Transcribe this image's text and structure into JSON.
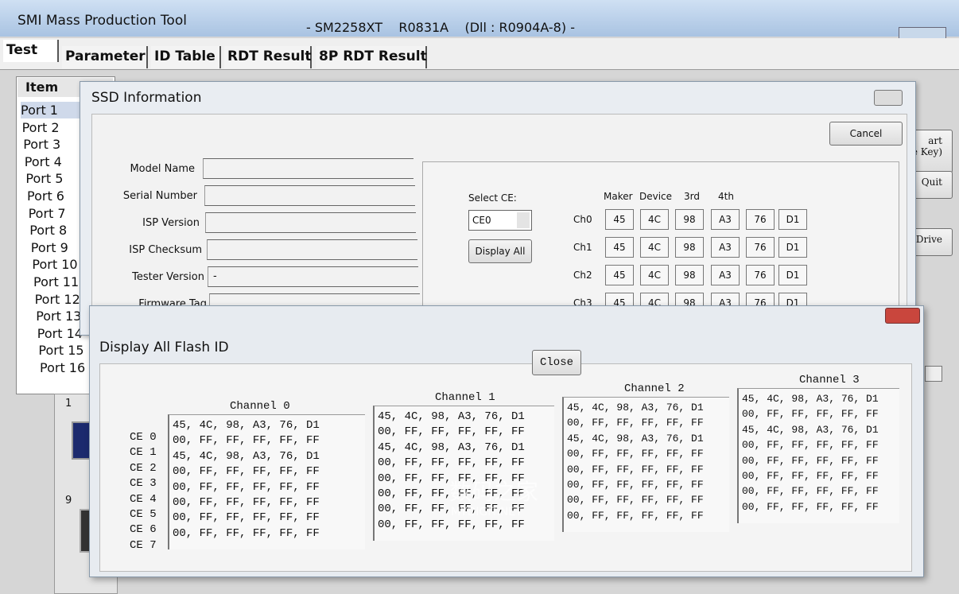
{
  "window": {
    "title": "SMI Mass Production Tool",
    "version": "- SM2258XT    R0831A    (Dll : R0904A-8) -"
  },
  "tabs": [
    "Test",
    "Parameter",
    "ID Table",
    "RDT Result",
    "8P RDT Result"
  ],
  "item_header": "Item",
  "ports": [
    "Port 1",
    "Port 2",
    "Port 3",
    "Port 4",
    "Port 5",
    "Port 6",
    "Port 7",
    "Port 8",
    "Port 9",
    "Port 10",
    "Port 11",
    "Port 12",
    "Port 13",
    "Port 14",
    "Port 15",
    "Port 16"
  ],
  "side_buttons": [
    [
      "art",
      "e Key)"
    ],
    [
      "Quit"
    ],
    [
      "n Drive"
    ]
  ],
  "slot_numbers": [
    "1",
    "9"
  ],
  "ssd_dialog": {
    "title": "SSD Information",
    "cancel": "Cancel",
    "field_labels": [
      "Model Name",
      "Serial Number",
      "ISP Version",
      "ISP Checksum",
      "Tester Version",
      "Firmware Tag"
    ],
    "tester_version_value": "-",
    "select_ce_label": "Select CE:",
    "select_ce_value": "CE0",
    "display_all": "Display All",
    "id_headers": [
      "Maker",
      "Device",
      "3rd",
      "4th"
    ],
    "channels": [
      {
        "label": "Ch0",
        "bytes": [
          "45",
          "4C",
          "98",
          "A3",
          "76",
          "D1"
        ]
      },
      {
        "label": "Ch1",
        "bytes": [
          "45",
          "4C",
          "98",
          "A3",
          "76",
          "D1"
        ]
      },
      {
        "label": "Ch2",
        "bytes": [
          "45",
          "4C",
          "98",
          "A3",
          "76",
          "D1"
        ]
      },
      {
        "label": "Ch3",
        "bytes": [
          "45",
          "4C",
          "98",
          "A3",
          "76",
          "D1"
        ]
      }
    ]
  },
  "flash_dialog": {
    "title": "Display All Flash ID",
    "close": "Close",
    "ce_labels": [
      "CE 0",
      "CE 1",
      "CE 2",
      "CE 3",
      "CE 4",
      "CE 5",
      "CE 6",
      "CE 7"
    ],
    "channels": [
      {
        "name": "Channel 0",
        "rows": [
          "45, 4C, 98, A3, 76, D1",
          "00, FF, FF, FF, FF, FF",
          "45, 4C, 98, A3, 76, D1",
          "00, FF, FF, FF, FF, FF",
          "00, FF, FF, FF, FF, FF",
          "00, FF, FF, FF, FF, FF",
          "00, FF, FF, FF, FF, FF",
          "00, FF, FF, FF, FF, FF"
        ]
      },
      {
        "name": "Channel 1",
        "rows": [
          "45, 4C, 98, A3, 76, D1",
          "00, FF, FF, FF, FF, FF",
          "45, 4C, 98, A3, 76, D1",
          "00, FF, FF, FF, FF, FF",
          "00, FF, FF, FF, FF, FF",
          "00, FF, FF, FF, FF, FF",
          "00, FF, FF, FF, FF, FF",
          "00, FF, FF, FF, FF, FF"
        ]
      },
      {
        "name": "Channel 2",
        "rows": [
          "45, 4C, 98, A3, 76, D1",
          "00, FF, FF, FF, FF, FF",
          "45, 4C, 98, A3, 76, D1",
          "00, FF, FF, FF, FF, FF",
          "00, FF, FF, FF, FF, FF",
          "00, FF, FF, FF, FF, FF",
          "00, FF, FF, FF, FF, FF",
          "00, FF, FF, FF, FF, FF"
        ]
      },
      {
        "name": "Channel 3",
        "rows": [
          "45, 4C, 98, A3, 76, D1",
          "00, FF, FF, FF, FF, FF",
          "45, 4C, 98, A3, 76, D1",
          "00, FF, FF, FF, FF, FF",
          "00, FF, FF, FF, FF, FF",
          "00, FF, FF, FF, FF, FF",
          "00, FF, FF, FF, FF, FF",
          "00, FF, FF, FF, FF, FF"
        ]
      }
    ]
  },
  "watermark": {
    "text": "数码之家",
    "sub": "MYDIGIT.NET"
  }
}
